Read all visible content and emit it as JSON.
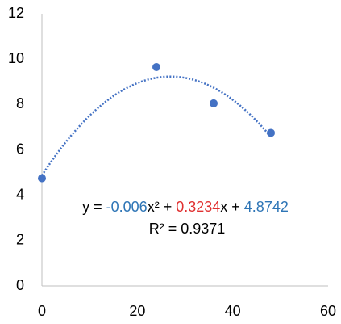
{
  "chart_data": {
    "type": "scatter",
    "x": [
      0,
      24,
      36,
      48
    ],
    "values": [
      4.75,
      9.65,
      8.05,
      6.75
    ],
    "color": "#4472c4",
    "xlim": [
      0,
      60
    ],
    "xticks": [
      0,
      20,
      40,
      60
    ],
    "ylim": [
      0,
      12
    ],
    "yticks": [
      0,
      2,
      4,
      6,
      8,
      10,
      12
    ],
    "grid": false,
    "trendline": {
      "type": "polynomial",
      "coefficients": [
        -0.006,
        0.3234,
        4.8742
      ],
      "color": "#4472c4",
      "equation_parts": [
        "y = ",
        "x² + ",
        "x + "
      ],
      "coefficient_colors": [
        "#2e75b6",
        "#e03030",
        "#2e75b6"
      ],
      "r2_label": "R² = ",
      "r2": 0.9371
    }
  }
}
